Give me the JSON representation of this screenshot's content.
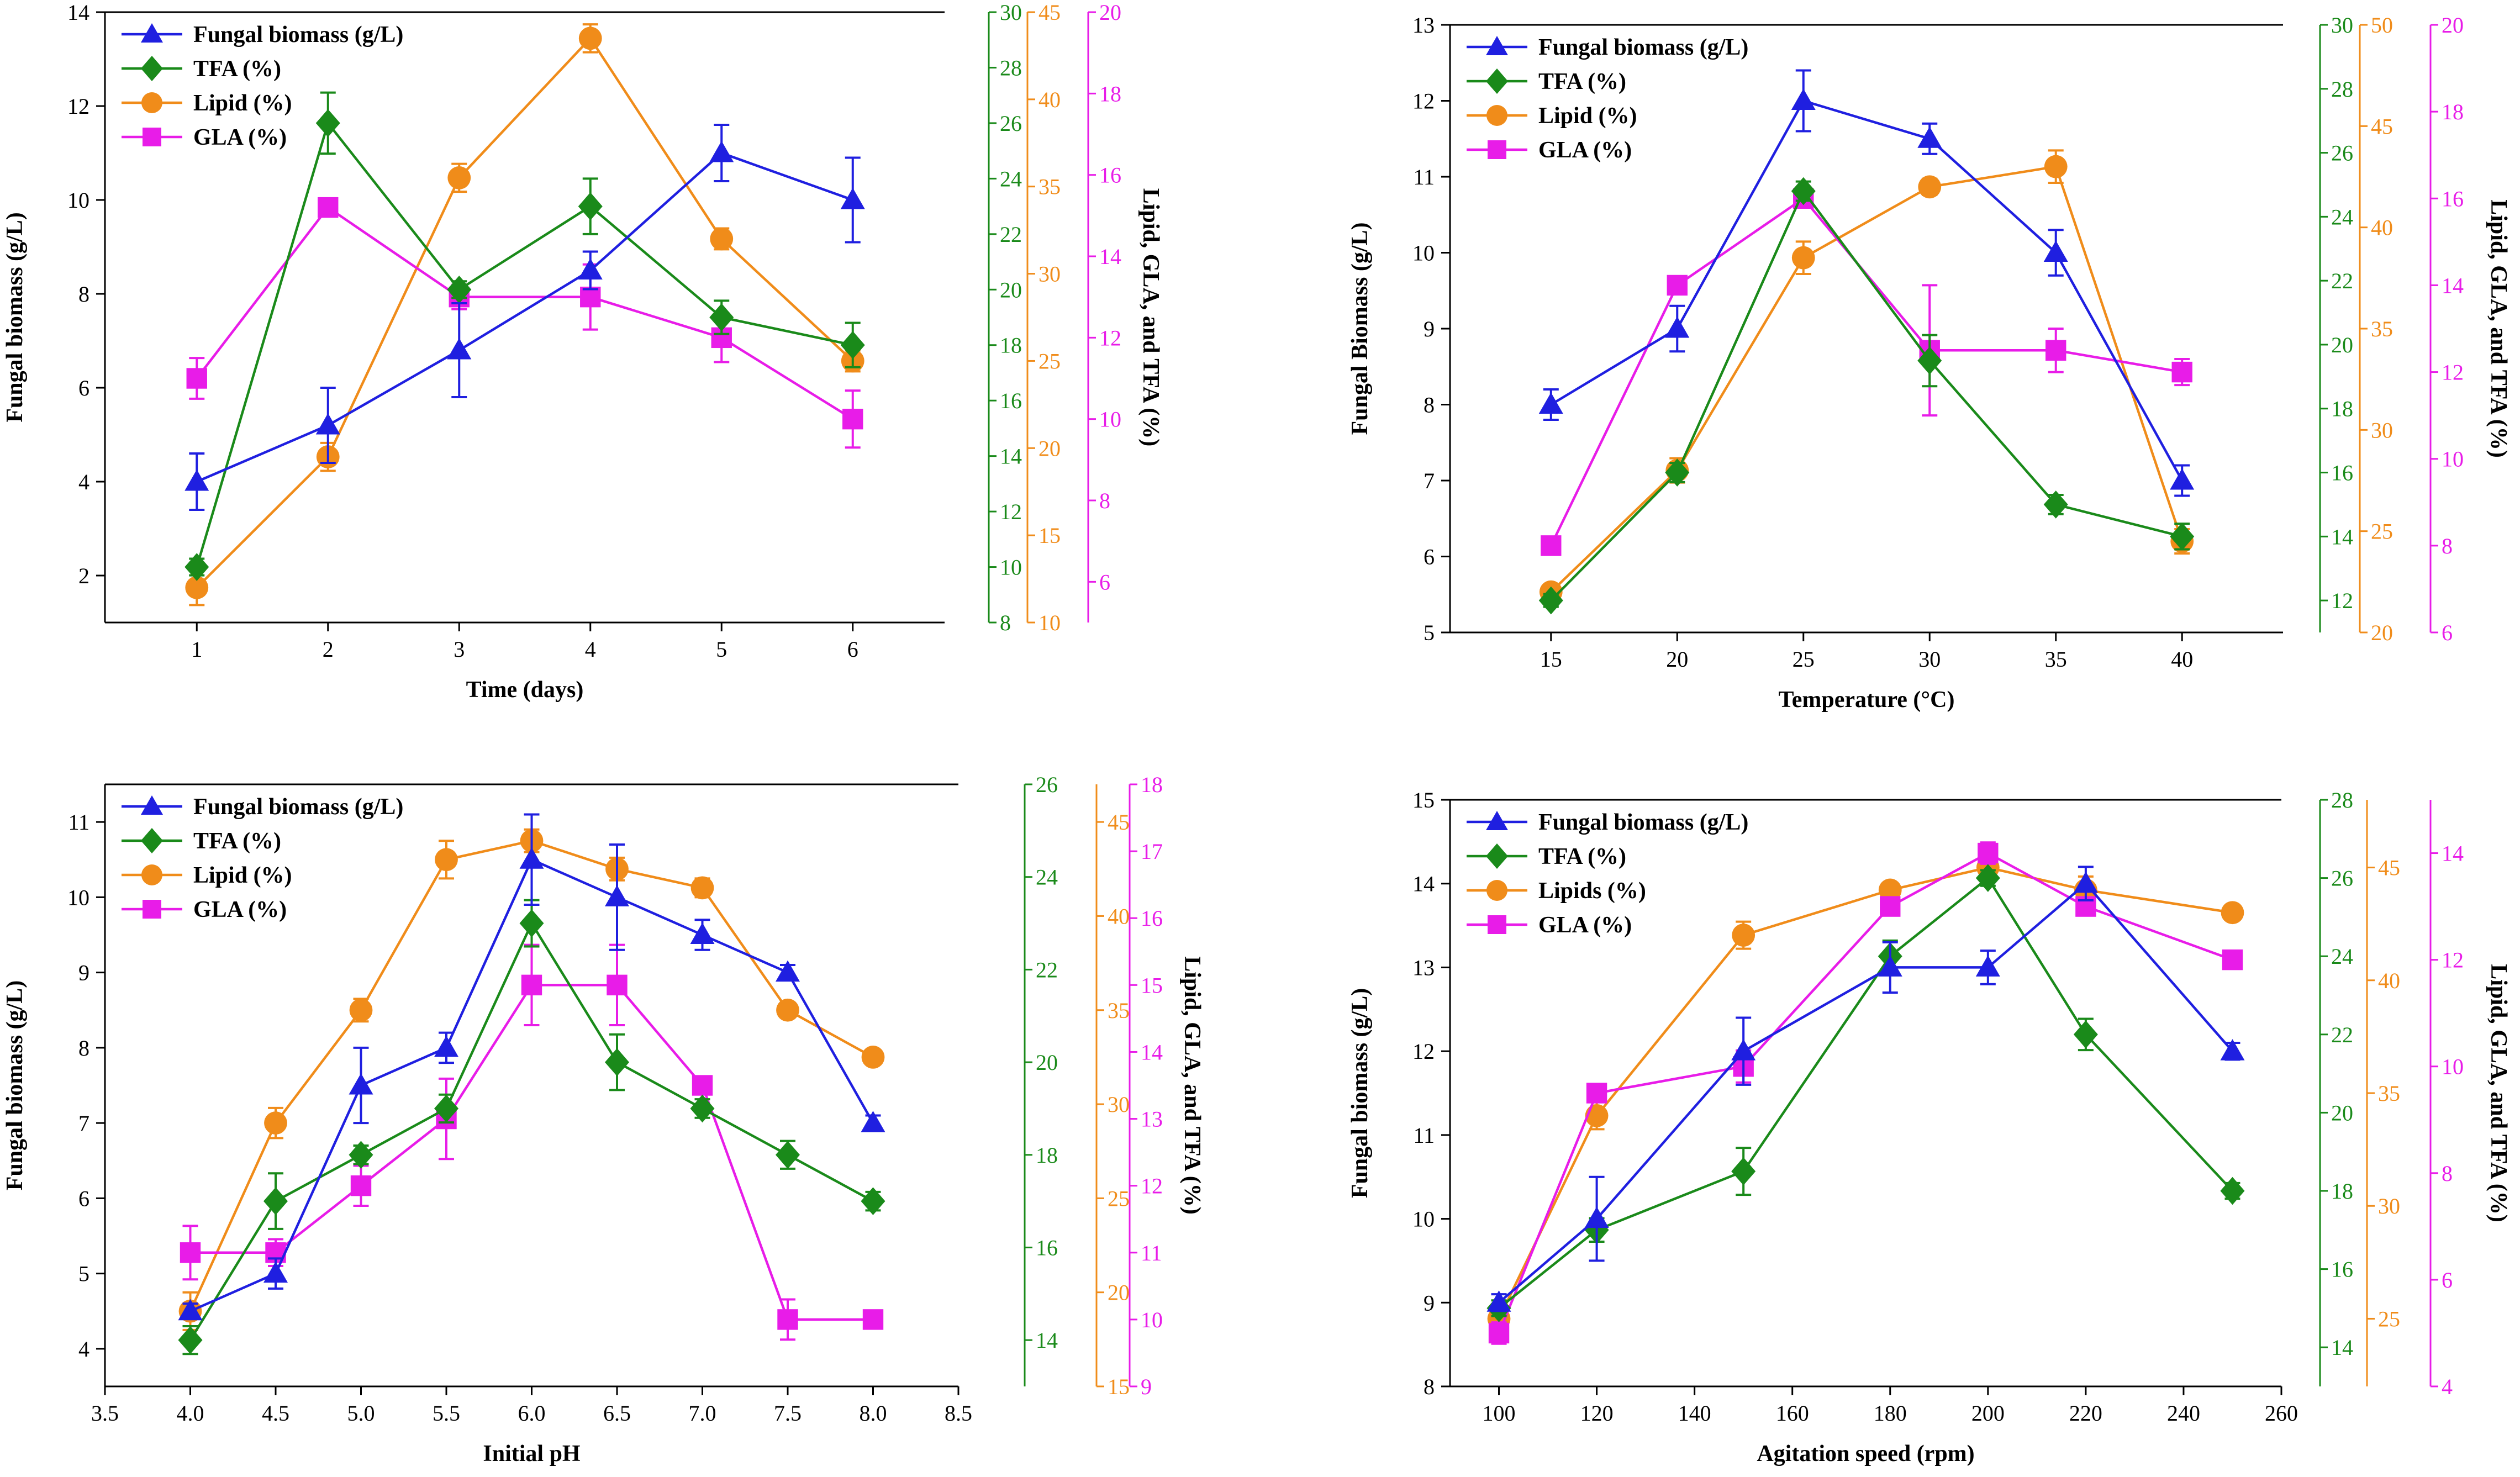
{
  "colors": {
    "biomass": "#1f1fe0",
    "tfa": "#1a8a1a",
    "lipid": "#f08c1a",
    "gla": "#e81ce8",
    "axis": "#000000"
  },
  "chart_data": [
    {
      "type": "line",
      "id": "time",
      "xlabel": "Time (days)",
      "ylabel_left": "Fungal biomass (g/L)",
      "ylabel_right": "Lipid, GLA, and TFA (%)",
      "x": [
        1,
        2,
        3,
        4,
        5,
        6
      ],
      "xlim": [
        0.3,
        6.7
      ],
      "xticks": [
        1,
        2,
        3,
        4,
        5,
        6
      ],
      "xtick_labels": [
        "1",
        "2",
        "3",
        "4",
        "5",
        "6"
      ],
      "legend_position": "top-left",
      "series": [
        {
          "key": "biomass",
          "name": "Fungal biomass (g/L)",
          "marker": "triangle",
          "axis": "left",
          "ylim": [
            1,
            14
          ],
          "ticks": [
            2,
            4,
            6,
            8,
            10,
            12,
            14
          ],
          "values": [
            4.0,
            5.2,
            6.8,
            8.5,
            11.0,
            10.0
          ],
          "errors": [
            0.6,
            0.8,
            1.0,
            0.4,
            0.6,
            0.9
          ]
        },
        {
          "key": "tfa",
          "name": "TFA (%)",
          "marker": "diamond",
          "axis": "right1",
          "ylim": [
            8,
            30
          ],
          "ticks": [
            8,
            10,
            12,
            14,
            16,
            18,
            20,
            22,
            24,
            26,
            28,
            30
          ],
          "values": [
            10.0,
            26.0,
            20.0,
            23.0,
            19.0,
            18.0
          ],
          "errors": [
            0.3,
            1.1,
            0.3,
            1.0,
            0.6,
            0.8
          ]
        },
        {
          "key": "lipid",
          "name": "Lipid (%)",
          "marker": "circle",
          "axis": "right2",
          "ylim": [
            10,
            45
          ],
          "ticks": [
            10,
            15,
            20,
            25,
            30,
            35,
            40,
            45
          ],
          "values": [
            12.0,
            19.5,
            35.5,
            43.5,
            32.0,
            25.0
          ],
          "errors": [
            1.0,
            0.8,
            0.8,
            0.8,
            0.6,
            0.6
          ]
        },
        {
          "key": "gla",
          "name": "GLA (%)",
          "marker": "square",
          "axis": "right3",
          "ylim": [
            5,
            20
          ],
          "ticks": [
            6,
            8,
            10,
            12,
            14,
            16,
            18,
            20
          ],
          "values": [
            11.0,
            15.2,
            13.0,
            13.0,
            12.0,
            10.0
          ],
          "errors": [
            0.5,
            0.0,
            0.3,
            0.8,
            0.6,
            0.7
          ]
        }
      ]
    },
    {
      "type": "line",
      "id": "temperature",
      "xlabel": "Temperature (°C)",
      "ylabel_left": "Fungal Biomass (g/L)",
      "ylabel_right": "Lipid, GLA, and TFA (%)",
      "x": [
        15,
        20,
        25,
        30,
        35,
        40
      ],
      "xlim": [
        11,
        44
      ],
      "xticks": [
        15,
        20,
        25,
        30,
        35,
        40
      ],
      "xtick_labels": [
        "15",
        "20",
        "25",
        "30",
        "35",
        "40"
      ],
      "legend_position": "top-left",
      "series": [
        {
          "key": "biomass",
          "name": "Fungal biomass (g/L)",
          "marker": "triangle",
          "axis": "left",
          "ylim": [
            5,
            13
          ],
          "ticks": [
            5,
            6,
            7,
            8,
            9,
            10,
            11,
            12,
            13
          ],
          "values": [
            8.0,
            9.0,
            12.0,
            11.5,
            10.0,
            7.0
          ],
          "errors": [
            0.2,
            0.3,
            0.4,
            0.2,
            0.3,
            0.2
          ]
        },
        {
          "key": "tfa",
          "name": "TFA (%)",
          "marker": "diamond",
          "axis": "right1",
          "ylim": [
            11,
            30
          ],
          "ticks": [
            12,
            14,
            16,
            18,
            20,
            22,
            24,
            26,
            28,
            30
          ],
          "values": [
            12.0,
            16.0,
            24.8,
            19.5,
            15.0,
            14.0
          ],
          "errors": [
            0.2,
            0.3,
            0.3,
            0.8,
            0.3,
            0.4
          ]
        },
        {
          "key": "lipid",
          "name": "Lipid (%)",
          "marker": "circle",
          "axis": "right2",
          "ylim": [
            20,
            50
          ],
          "ticks": [
            20,
            25,
            30,
            35,
            40,
            45,
            50
          ],
          "values": [
            22.0,
            28.0,
            38.5,
            42.0,
            43.0,
            24.5
          ],
          "errors": [
            0.3,
            0.6,
            0.8,
            0.4,
            0.8,
            0.6
          ]
        },
        {
          "key": "gla",
          "name": "GLA (%)",
          "marker": "square",
          "axis": "right3",
          "ylim": [
            6,
            20
          ],
          "ticks": [
            6,
            8,
            10,
            12,
            14,
            16,
            18,
            20
          ],
          "values": [
            8.0,
            14.0,
            16.0,
            12.5,
            12.5,
            12.0
          ],
          "errors": [
            0.0,
            0.0,
            0.2,
            1.5,
            0.5,
            0.3
          ]
        }
      ]
    },
    {
      "type": "line",
      "id": "ph",
      "xlabel": "Initial pH",
      "ylabel_left": "Fungal biomass (g/L)",
      "ylabel_right": "Lipid, GLA, and TFA (%)",
      "x": [
        4.0,
        4.5,
        5.0,
        5.5,
        6.0,
        6.5,
        7.0,
        7.5,
        8.0
      ],
      "xlim": [
        3.5,
        8.5
      ],
      "xticks": [
        3.5,
        4.0,
        4.5,
        5.0,
        5.5,
        6.0,
        6.5,
        7.0,
        7.5,
        8.0,
        8.5
      ],
      "xtick_labels": [
        "3.5",
        "4.0",
        "4.5",
        "5.0",
        "5.5",
        "6.0",
        "6.5",
        "7.0",
        "7.5",
        "8.0",
        "8.5"
      ],
      "legend_position": "top-left",
      "series": [
        {
          "key": "biomass",
          "name": "Fungal biomass (g/L)",
          "marker": "triangle",
          "axis": "left",
          "ylim": [
            3.5,
            11.5
          ],
          "ticks": [
            4,
            5,
            6,
            7,
            8,
            9,
            10,
            11
          ],
          "values": [
            4.5,
            5.0,
            7.5,
            8.0,
            10.5,
            10.0,
            9.5,
            9.0,
            7.0
          ],
          "errors": [
            0.1,
            0.2,
            0.5,
            0.2,
            0.6,
            0.7,
            0.2,
            0.1,
            0.1
          ]
        },
        {
          "key": "tfa",
          "name": "TFA (%)",
          "marker": "diamond",
          "axis": "right1",
          "ylim": [
            13,
            26
          ],
          "ticks": [
            14,
            16,
            18,
            20,
            22,
            24,
            26
          ],
          "values": [
            14.0,
            17.0,
            18.0,
            19.0,
            23.0,
            20.0,
            19.0,
            18.0,
            17.0
          ],
          "errors": [
            0.3,
            0.6,
            0.2,
            0.3,
            0.5,
            0.6,
            0.2,
            0.3,
            0.2
          ]
        },
        {
          "key": "lipid",
          "name": "Lipid (%)",
          "marker": "circle",
          "axis": "right2",
          "ylim": [
            15,
            47
          ],
          "ticks": [
            15,
            20,
            25,
            30,
            35,
            40,
            45
          ],
          "values": [
            19.0,
            29.0,
            35.0,
            43.0,
            44.0,
            42.5,
            41.5,
            35.0,
            32.5
          ],
          "errors": [
            1.0,
            0.8,
            0.6,
            1.0,
            0.6,
            0.6,
            0.5,
            0.4,
            0.3
          ]
        },
        {
          "key": "gla",
          "name": "GLA (%)",
          "marker": "square",
          "axis": "right3",
          "ylim": [
            9,
            18
          ],
          "ticks": [
            9,
            10,
            11,
            12,
            13,
            14,
            15,
            16,
            17,
            18
          ],
          "values": [
            11.0,
            11.0,
            12.0,
            13.0,
            15.0,
            15.0,
            13.5,
            10.0,
            10.0
          ],
          "errors": [
            0.4,
            0.2,
            0.3,
            0.6,
            0.6,
            0.6,
            0.1,
            0.3,
            0.0
          ]
        }
      ]
    },
    {
      "type": "line",
      "id": "agitation",
      "xlabel": "Agitation speed (rpm)",
      "ylabel_left": "Fungal biomass (g/L)",
      "ylabel_right": "Lipid, GLA, and TFA (%)",
      "x": [
        100,
        120,
        150,
        180,
        200,
        220,
        250
      ],
      "xlim": [
        90,
        260
      ],
      "xticks": [
        100,
        120,
        140,
        160,
        180,
        200,
        220,
        240,
        260
      ],
      "xtick_labels": [
        "100",
        "120",
        "140",
        "160",
        "180",
        "200",
        "220",
        "240",
        "260"
      ],
      "legend_position": "top-left",
      "series": [
        {
          "key": "biomass",
          "name": "Fungal biomass (g/L)",
          "marker": "triangle",
          "axis": "left",
          "ylim": [
            8,
            15
          ],
          "ticks": [
            8,
            9,
            10,
            11,
            12,
            13,
            14,
            15
          ],
          "values": [
            9.0,
            10.0,
            12.0,
            13.0,
            13.0,
            14.0,
            12.0
          ],
          "errors": [
            0.1,
            0.5,
            0.4,
            0.3,
            0.2,
            0.2,
            0.1
          ]
        },
        {
          "key": "tfa",
          "name": "TFA (%)",
          "marker": "diamond",
          "axis": "right1",
          "ylim": [
            13,
            28
          ],
          "ticks": [
            14,
            16,
            18,
            20,
            22,
            24,
            26,
            28
          ],
          "values": [
            15.0,
            17.0,
            18.5,
            24.0,
            26.0,
            22.0,
            18.0
          ],
          "errors": [
            0.2,
            0.3,
            0.6,
            0.4,
            0.2,
            0.4,
            0.2
          ]
        },
        {
          "key": "lipid",
          "name": "Lipids (%)",
          "marker": "circle",
          "axis": "right2",
          "ylim": [
            22,
            48
          ],
          "ticks": [
            25,
            30,
            35,
            40,
            45
          ],
          "values": [
            25.0,
            34.0,
            42.0,
            44.0,
            45.0,
            44.0,
            43.0
          ],
          "errors": [
            0.4,
            0.6,
            0.6,
            0.3,
            0.2,
            0.6,
            0.2
          ]
        },
        {
          "key": "gla",
          "name": "GLA (%)",
          "marker": "square",
          "axis": "right3",
          "ylim": [
            4,
            15
          ],
          "ticks": [
            4,
            6,
            8,
            10,
            12,
            14
          ],
          "values": [
            5.0,
            9.5,
            10.0,
            13.0,
            14.0,
            13.0,
            12.0
          ],
          "errors": [
            0.2,
            0.1,
            0.3,
            0.1,
            0.2,
            0.1,
            0.1
          ]
        }
      ]
    }
  ]
}
